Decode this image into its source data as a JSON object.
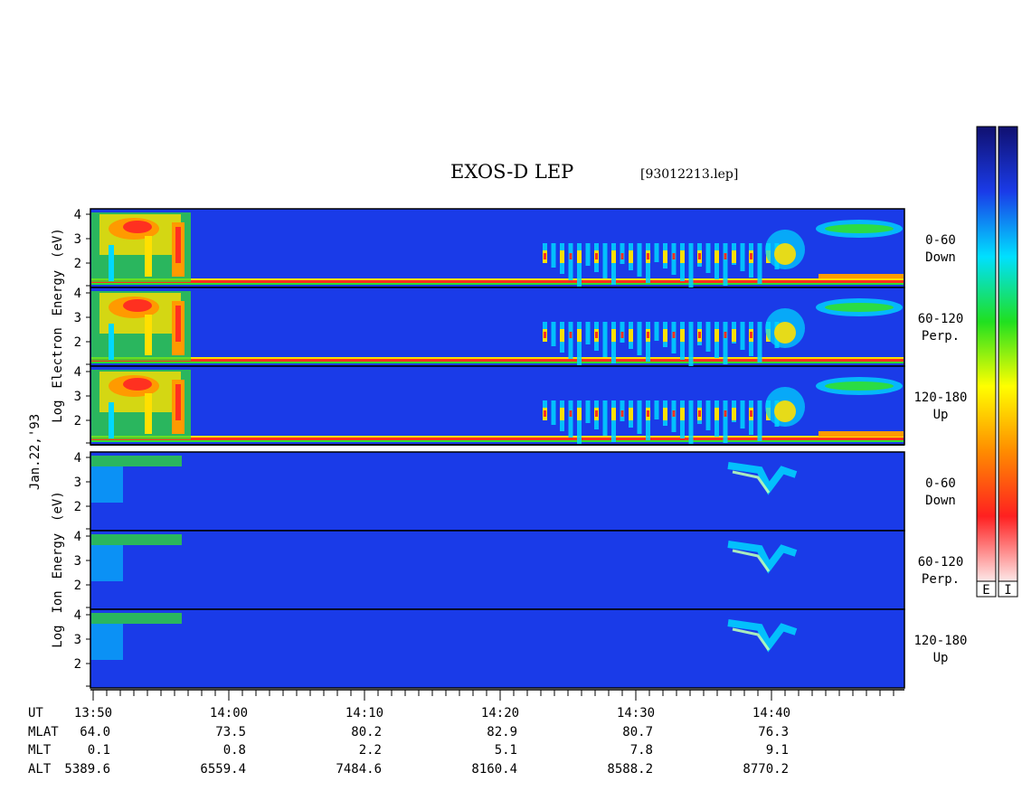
{
  "title": "EXOS-D LEP",
  "file_id": "[93012213.lep]",
  "date_label": "Jan.22,'93",
  "electron_axis_label": [
    "Log",
    "Electron",
    "Energy",
    "(eV)"
  ],
  "ion_axis_label": [
    "Log",
    "Ion",
    "Energy",
    "(eV)"
  ],
  "colorbar_labels": [
    "E",
    "I"
  ],
  "colors": {
    "background_blue": "#1a3be8",
    "panel_border": "#000000"
  },
  "chart_data": {
    "type": "heatmap",
    "x_ticks": [
      "13:50",
      "14:00",
      "14:10",
      "14:20",
      "14:30",
      "14:40"
    ],
    "y_ticks": [
      "4",
      "3",
      "2"
    ],
    "panels": [
      {
        "species": "Electron",
        "pitch": "0-60",
        "dir": "Down"
      },
      {
        "species": "Electron",
        "pitch": "60-120",
        "dir": "Perp."
      },
      {
        "species": "Electron",
        "pitch": "120-180",
        "dir": "Up"
      },
      {
        "species": "Ion",
        "pitch": "0-60",
        "dir": "Down"
      },
      {
        "species": "Ion",
        "pitch": "60-120",
        "dir": "Perp."
      },
      {
        "species": "Ion",
        "pitch": "120-180",
        "dir": "Up"
      }
    ],
    "ephemeris": [
      {
        "name": "UT",
        "values": [
          "13:50",
          "14:00",
          "14:10",
          "14:20",
          "14:30",
          "14:40"
        ]
      },
      {
        "name": "MLAT",
        "values": [
          "64.0",
          "73.5",
          "80.2",
          "82.9",
          "80.7",
          "76.3"
        ]
      },
      {
        "name": "MLT",
        "values": [
          "0.1",
          "0.8",
          "2.2",
          "5.1",
          "7.8",
          "9.1"
        ]
      },
      {
        "name": "ALT",
        "values": [
          "5389.6",
          "6559.4",
          "7484.6",
          "8160.4",
          "8588.2",
          "8770.2"
        ]
      }
    ],
    "colorbar_stops": [
      "#fde8e8",
      "#ff2020",
      "#ff8c00",
      "#ffff00",
      "#20e020",
      "#00e0ff",
      "#1a3be8",
      "#101070"
    ]
  }
}
